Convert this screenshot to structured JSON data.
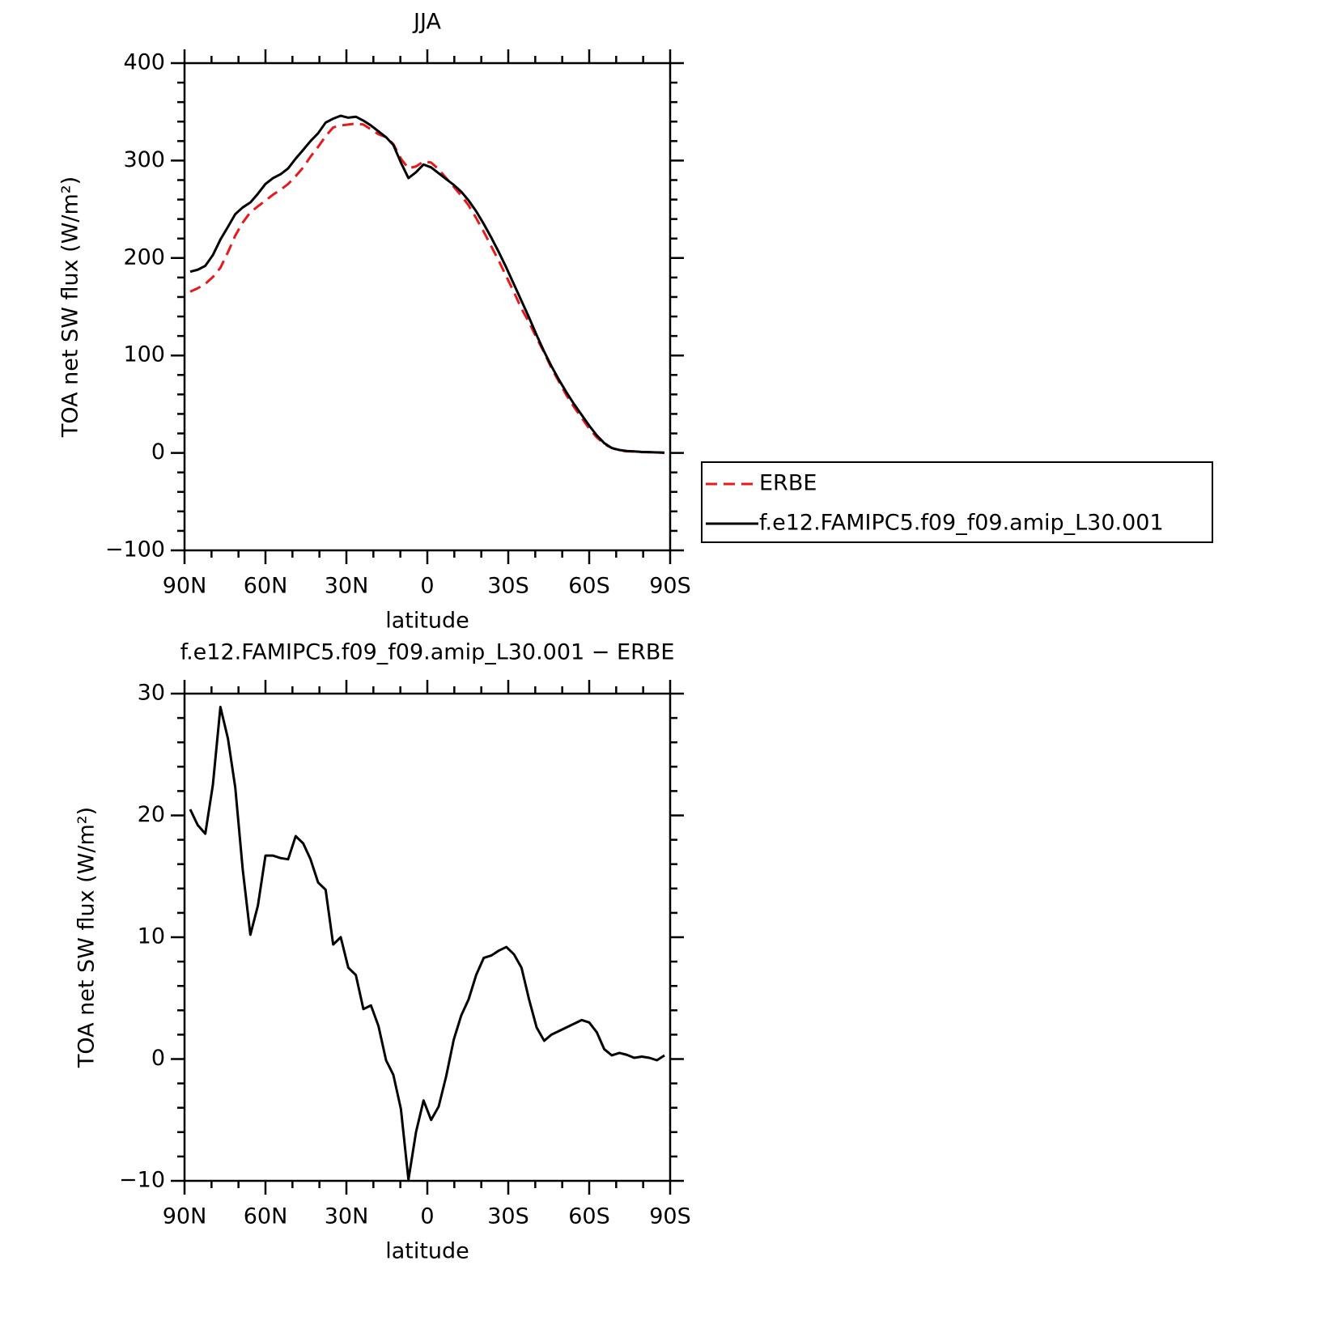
{
  "chart_data": [
    {
      "type": "line",
      "title": "JJA",
      "xlabel": "latitude",
      "ylabel": "TOA net SW flux (W/m²)",
      "x": [
        87.9,
        85.1,
        82.3,
        79.5,
        76.7,
        73.9,
        71.2,
        68.4,
        65.6,
        62.8,
        60.0,
        57.2,
        54.4,
        51.6,
        48.8,
        46.0,
        43.3,
        40.5,
        37.7,
        34.9,
        32.1,
        29.3,
        26.5,
        23.7,
        20.9,
        18.1,
        15.3,
        12.6,
        9.8,
        7.0,
        4.2,
        1.4,
        -1.4,
        -4.2,
        -7.0,
        -9.8,
        -12.6,
        -15.3,
        -18.1,
        -20.9,
        -23.7,
        -26.5,
        -29.3,
        -32.1,
        -34.9,
        -37.7,
        -40.5,
        -43.3,
        -46.0,
        -48.8,
        -51.6,
        -54.4,
        -57.2,
        -60.0,
        -62.8,
        -65.6,
        -68.4,
        -71.2,
        -73.9,
        -76.7,
        -79.5,
        -82.3,
        -85.1,
        -87.9
      ],
      "series": [
        {
          "name": "ERBE",
          "color": "#e41a1c",
          "dashed": true,
          "values": [
            165.5,
            169,
            173.5,
            180.5,
            190,
            206,
            223,
            236.5,
            247,
            253,
            259,
            265,
            270,
            276,
            284,
            293,
            304,
            314,
            325,
            334,
            336,
            337,
            338,
            337,
            332,
            327,
            324,
            317,
            302,
            292,
            294,
            299,
            298,
            291,
            282,
            273,
            264,
            254,
            241,
            227,
            212,
            197,
            181,
            165,
            148,
            134,
            118,
            103,
            87,
            73,
            59,
            47,
            36,
            25,
            16,
            9,
            5,
            2.5,
            1.6,
            1.4,
            0.8,
            0.7,
            0.6,
            0.0
          ]
        },
        {
          "name": "f.e12.FAMIPC5.f09_f09.amip_L30.001",
          "color": "#000000",
          "dashed": false,
          "values": [
            186,
            188,
            192,
            203,
            219,
            232,
            245,
            252,
            257,
            266,
            276,
            282,
            286,
            292,
            302,
            311,
            320,
            328,
            339,
            343,
            346,
            344,
            345,
            341,
            336,
            330,
            324,
            316,
            298,
            282,
            288,
            296,
            293,
            287,
            281,
            275,
            268,
            259,
            248,
            235,
            221,
            206,
            190,
            173,
            156,
            139,
            121,
            104,
            89,
            75,
            62,
            50,
            39,
            28,
            18,
            10,
            5,
            3,
            2,
            1.5,
            1,
            0.8,
            0.5,
            0.3
          ]
        }
      ],
      "xlim": [
        90,
        -90
      ],
      "xticks": [
        {
          "value": 90,
          "label": "90N"
        },
        {
          "value": 60,
          "label": "60N"
        },
        {
          "value": 30,
          "label": "30N"
        },
        0,
        {
          "value": -30,
          "label": "30S"
        },
        {
          "value": -60,
          "label": "60S"
        },
        {
          "value": -90,
          "label": "90S"
        }
      ],
      "ylim": [
        -100,
        400
      ],
      "yticks": [
        {
          "value": -100,
          "label": "−100"
        },
        0,
        100,
        200,
        300,
        400
      ],
      "legend": "right"
    },
    {
      "type": "line",
      "title": "f.e12.FAMIPC5.f09_f09.amip_L30.001 − ERBE",
      "xlabel": "latitude",
      "ylabel": "TOA net SW flux (W/m²)",
      "x": [
        87.9,
        85.1,
        82.3,
        79.5,
        76.7,
        73.9,
        71.2,
        68.4,
        65.6,
        62.8,
        60.0,
        57.2,
        54.4,
        51.6,
        48.8,
        46.0,
        43.3,
        40.5,
        37.7,
        34.9,
        32.1,
        29.3,
        26.5,
        23.7,
        20.9,
        18.1,
        15.3,
        12.6,
        9.8,
        7.0,
        4.2,
        1.4,
        -1.4,
        -4.2,
        -7.0,
        -9.8,
        -12.6,
        -15.3,
        -18.1,
        -20.9,
        -23.7,
        -26.5,
        -29.3,
        -32.1,
        -34.9,
        -37.7,
        -40.5,
        -43.3,
        -46.0,
        -48.8,
        -51.6,
        -54.4,
        -57.2,
        -60.0,
        -62.8,
        -65.6,
        -68.4,
        -71.2,
        -73.9,
        -76.7,
        -79.5,
        -82.3,
        -85.1,
        -87.9
      ],
      "series": [
        {
          "color": "#000000",
          "dashed": false,
          "values": [
            20.5,
            19.2,
            18.5,
            22.5,
            28.9,
            26.3,
            22.3,
            15.5,
            10.2,
            12.6,
            16.7,
            16.7,
            16.5,
            16.4,
            18.3,
            17.7,
            16.4,
            14.5,
            13.9,
            9.4,
            10.0,
            7.5,
            6.9,
            4.1,
            4.4,
            2.7,
            -0.1,
            -1.3,
            -4.1,
            -9.9,
            -6.0,
            -3.4,
            -5.0,
            -3.9,
            -1.4,
            1.6,
            3.6,
            4.9,
            6.9,
            8.3,
            8.5,
            8.9,
            9.2,
            8.6,
            7.5,
            4.9,
            2.6,
            1.5,
            2.0,
            2.3,
            2.6,
            2.9,
            3.2,
            3.0,
            2.2,
            0.8,
            0.3,
            0.5,
            0.35,
            0.1,
            0.2,
            0.1,
            -0.1,
            0.3
          ]
        }
      ],
      "xlim": [
        90,
        -90
      ],
      "xticks": [
        {
          "value": 90,
          "label": "90N"
        },
        {
          "value": 60,
          "label": "60N"
        },
        {
          "value": 30,
          "label": "30N"
        },
        0,
        {
          "value": -30,
          "label": "30S"
        },
        {
          "value": -60,
          "label": "60S"
        },
        {
          "value": -90,
          "label": "90S"
        }
      ],
      "ylim": [
        -10,
        30
      ],
      "yticks": [
        {
          "value": -10,
          "label": "−10"
        },
        0,
        10,
        20,
        30
      ]
    }
  ]
}
